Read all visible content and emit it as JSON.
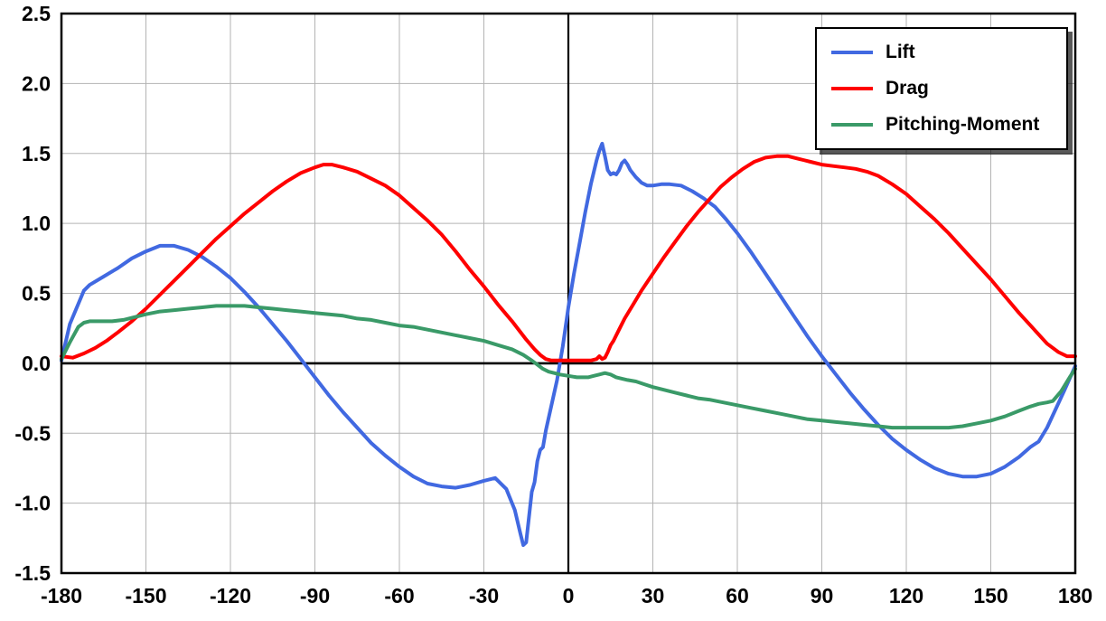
{
  "chart_data": {
    "type": "line",
    "title": "",
    "xlabel": "",
    "ylabel": "",
    "xlim": [
      -180,
      180
    ],
    "ylim": [
      -1.5,
      2.5
    ],
    "grid": true,
    "grid_color": "#b3b3b3",
    "axis_color": "#000000",
    "legend_position": "top-right",
    "x_ticks": [
      -180,
      -150,
      -120,
      -90,
      -60,
      -30,
      0,
      30,
      60,
      90,
      120,
      150,
      180
    ],
    "x_tick_labels": [
      "-180",
      "-150",
      "-120",
      "-90",
      "-60",
      "-30",
      "0",
      "30",
      "60",
      "90",
      "120",
      "150",
      "180"
    ],
    "y_ticks": [
      -1.5,
      -1.0,
      -0.5,
      0.0,
      0.5,
      1.0,
      1.5,
      2.0,
      2.5
    ],
    "y_tick_labels": [
      "-1.5",
      "-1.0",
      "-0.5",
      "0.0",
      "0.5",
      "1.0",
      "1.5",
      "2.0",
      "2.5"
    ],
    "series": [
      {
        "name": "Lift",
        "color": "#4169E1",
        "points": [
          [
            -180,
            0.02
          ],
          [
            -177,
            0.28
          ],
          [
            -172,
            0.52
          ],
          [
            -170,
            0.56
          ],
          [
            -165,
            0.62
          ],
          [
            -160,
            0.68
          ],
          [
            -155,
            0.75
          ],
          [
            -150,
            0.8
          ],
          [
            -145,
            0.84
          ],
          [
            -140,
            0.84
          ],
          [
            -135,
            0.81
          ],
          [
            -130,
            0.76
          ],
          [
            -125,
            0.69
          ],
          [
            -120,
            0.61
          ],
          [
            -115,
            0.51
          ],
          [
            -110,
            0.4
          ],
          [
            -105,
            0.28
          ],
          [
            -100,
            0.16
          ],
          [
            -95,
            0.03
          ],
          [
            -90,
            -0.1
          ],
          [
            -85,
            -0.23
          ],
          [
            -80,
            -0.35
          ],
          [
            -75,
            -0.46
          ],
          [
            -70,
            -0.57
          ],
          [
            -65,
            -0.66
          ],
          [
            -60,
            -0.74
          ],
          [
            -55,
            -0.81
          ],
          [
            -50,
            -0.86
          ],
          [
            -45,
            -0.88
          ],
          [
            -40,
            -0.89
          ],
          [
            -35,
            -0.87
          ],
          [
            -30,
            -0.84
          ],
          [
            -26,
            -0.82
          ],
          [
            -22,
            -0.9
          ],
          [
            -19,
            -1.05
          ],
          [
            -17,
            -1.22
          ],
          [
            -16,
            -1.3
          ],
          [
            -15,
            -1.28
          ],
          [
            -14,
            -1.1
          ],
          [
            -13,
            -0.92
          ],
          [
            -12,
            -0.85
          ],
          [
            -11,
            -0.7
          ],
          [
            -10,
            -0.62
          ],
          [
            -9,
            -0.6
          ],
          [
            -8,
            -0.48
          ],
          [
            -6,
            -0.3
          ],
          [
            -4,
            -0.12
          ],
          [
            -2,
            0.12
          ],
          [
            0,
            0.4
          ],
          [
            2,
            0.64
          ],
          [
            4,
            0.86
          ],
          [
            6,
            1.08
          ],
          [
            8,
            1.28
          ],
          [
            10,
            1.45
          ],
          [
            11,
            1.52
          ],
          [
            12,
            1.57
          ],
          [
            13,
            1.48
          ],
          [
            14,
            1.38
          ],
          [
            15,
            1.35
          ],
          [
            16,
            1.36
          ],
          [
            17,
            1.35
          ],
          [
            18,
            1.38
          ],
          [
            19,
            1.43
          ],
          [
            20,
            1.45
          ],
          [
            21,
            1.42
          ],
          [
            22,
            1.38
          ],
          [
            24,
            1.33
          ],
          [
            26,
            1.29
          ],
          [
            28,
            1.27
          ],
          [
            30,
            1.27
          ],
          [
            33,
            1.28
          ],
          [
            36,
            1.28
          ],
          [
            40,
            1.27
          ],
          [
            44,
            1.23
          ],
          [
            48,
            1.18
          ],
          [
            52,
            1.12
          ],
          [
            56,
            1.03
          ],
          [
            60,
            0.93
          ],
          [
            65,
            0.79
          ],
          [
            70,
            0.64
          ],
          [
            75,
            0.49
          ],
          [
            80,
            0.34
          ],
          [
            85,
            0.19
          ],
          [
            90,
            0.05
          ],
          [
            95,
            -0.08
          ],
          [
            100,
            -0.21
          ],
          [
            105,
            -0.33
          ],
          [
            110,
            -0.44
          ],
          [
            115,
            -0.54
          ],
          [
            120,
            -0.62
          ],
          [
            125,
            -0.69
          ],
          [
            130,
            -0.75
          ],
          [
            135,
            -0.79
          ],
          [
            140,
            -0.81
          ],
          [
            145,
            -0.81
          ],
          [
            150,
            -0.79
          ],
          [
            155,
            -0.74
          ],
          [
            160,
            -0.67
          ],
          [
            164,
            -0.6
          ],
          [
            167,
            -0.56
          ],
          [
            170,
            -0.46
          ],
          [
            173,
            -0.33
          ],
          [
            176,
            -0.2
          ],
          [
            180,
            -0.02
          ]
        ]
      },
      {
        "name": "Drag",
        "color": "#FF0000",
        "points": [
          [
            -180,
            0.05
          ],
          [
            -176,
            0.04
          ],
          [
            -172,
            0.07
          ],
          [
            -168,
            0.11
          ],
          [
            -164,
            0.16
          ],
          [
            -160,
            0.22
          ],
          [
            -155,
            0.3
          ],
          [
            -150,
            0.39
          ],
          [
            -145,
            0.49
          ],
          [
            -140,
            0.59
          ],
          [
            -135,
            0.69
          ],
          [
            -130,
            0.79
          ],
          [
            -125,
            0.89
          ],
          [
            -120,
            0.98
          ],
          [
            -115,
            1.07
          ],
          [
            -110,
            1.15
          ],
          [
            -105,
            1.23
          ],
          [
            -100,
            1.3
          ],
          [
            -95,
            1.36
          ],
          [
            -90,
            1.4
          ],
          [
            -87,
            1.42
          ],
          [
            -84,
            1.42
          ],
          [
            -80,
            1.4
          ],
          [
            -75,
            1.37
          ],
          [
            -70,
            1.32
          ],
          [
            -65,
            1.27
          ],
          [
            -60,
            1.2
          ],
          [
            -55,
            1.11
          ],
          [
            -50,
            1.02
          ],
          [
            -45,
            0.92
          ],
          [
            -40,
            0.8
          ],
          [
            -35,
            0.67
          ],
          [
            -30,
            0.55
          ],
          [
            -25,
            0.42
          ],
          [
            -20,
            0.3
          ],
          [
            -15,
            0.17
          ],
          [
            -12,
            0.1
          ],
          [
            -10,
            0.06
          ],
          [
            -8,
            0.03
          ],
          [
            -6,
            0.02
          ],
          [
            -3,
            0.02
          ],
          [
            0,
            0.02
          ],
          [
            3,
            0.02
          ],
          [
            6,
            0.02
          ],
          [
            8,
            0.02
          ],
          [
            10,
            0.03
          ],
          [
            11,
            0.05
          ],
          [
            12,
            0.03
          ],
          [
            13,
            0.04
          ],
          [
            14,
            0.08
          ],
          [
            15,
            0.13
          ],
          [
            16,
            0.16
          ],
          [
            18,
            0.24
          ],
          [
            20,
            0.32
          ],
          [
            23,
            0.42
          ],
          [
            26,
            0.52
          ],
          [
            30,
            0.64
          ],
          [
            34,
            0.76
          ],
          [
            38,
            0.87
          ],
          [
            42,
            0.98
          ],
          [
            46,
            1.08
          ],
          [
            50,
            1.17
          ],
          [
            54,
            1.26
          ],
          [
            58,
            1.33
          ],
          [
            62,
            1.39
          ],
          [
            66,
            1.44
          ],
          [
            70,
            1.47
          ],
          [
            74,
            1.48
          ],
          [
            78,
            1.48
          ],
          [
            82,
            1.46
          ],
          [
            86,
            1.44
          ],
          [
            90,
            1.42
          ],
          [
            94,
            1.41
          ],
          [
            98,
            1.4
          ],
          [
            102,
            1.39
          ],
          [
            106,
            1.37
          ],
          [
            110,
            1.34
          ],
          [
            115,
            1.28
          ],
          [
            120,
            1.21
          ],
          [
            125,
            1.12
          ],
          [
            130,
            1.03
          ],
          [
            135,
            0.93
          ],
          [
            140,
            0.82
          ],
          [
            145,
            0.71
          ],
          [
            150,
            0.6
          ],
          [
            155,
            0.48
          ],
          [
            160,
            0.36
          ],
          [
            165,
            0.25
          ],
          [
            170,
            0.14
          ],
          [
            174,
            0.08
          ],
          [
            177,
            0.05
          ],
          [
            180,
            0.05
          ]
        ]
      },
      {
        "name": "Pitching-Moment",
        "color": "#3A9A68",
        "points": [
          [
            -180,
            0.03
          ],
          [
            -177,
            0.15
          ],
          [
            -174,
            0.26
          ],
          [
            -172,
            0.29
          ],
          [
            -170,
            0.3
          ],
          [
            -166,
            0.3
          ],
          [
            -162,
            0.3
          ],
          [
            -158,
            0.31
          ],
          [
            -154,
            0.33
          ],
          [
            -150,
            0.35
          ],
          [
            -145,
            0.37
          ],
          [
            -140,
            0.38
          ],
          [
            -135,
            0.39
          ],
          [
            -130,
            0.4
          ],
          [
            -125,
            0.41
          ],
          [
            -120,
            0.41
          ],
          [
            -115,
            0.41
          ],
          [
            -110,
            0.4
          ],
          [
            -105,
            0.39
          ],
          [
            -100,
            0.38
          ],
          [
            -95,
            0.37
          ],
          [
            -90,
            0.36
          ],
          [
            -85,
            0.35
          ],
          [
            -80,
            0.34
          ],
          [
            -75,
            0.32
          ],
          [
            -70,
            0.31
          ],
          [
            -65,
            0.29
          ],
          [
            -60,
            0.27
          ],
          [
            -55,
            0.26
          ],
          [
            -50,
            0.24
          ],
          [
            -45,
            0.22
          ],
          [
            -40,
            0.2
          ],
          [
            -35,
            0.18
          ],
          [
            -30,
            0.16
          ],
          [
            -25,
            0.13
          ],
          [
            -20,
            0.1
          ],
          [
            -16,
            0.06
          ],
          [
            -13,
            0.02
          ],
          [
            -11,
            -0.01
          ],
          [
            -9,
            -0.04
          ],
          [
            -7,
            -0.06
          ],
          [
            -5,
            -0.07
          ],
          [
            -3,
            -0.08
          ],
          [
            0,
            -0.09
          ],
          [
            3,
            -0.1
          ],
          [
            5,
            -0.1
          ],
          [
            7,
            -0.1
          ],
          [
            9,
            -0.09
          ],
          [
            11,
            -0.08
          ],
          [
            13,
            -0.07
          ],
          [
            15,
            -0.08
          ],
          [
            17,
            -0.1
          ],
          [
            19,
            -0.11
          ],
          [
            21,
            -0.12
          ],
          [
            24,
            -0.13
          ],
          [
            27,
            -0.15
          ],
          [
            30,
            -0.17
          ],
          [
            34,
            -0.19
          ],
          [
            38,
            -0.21
          ],
          [
            42,
            -0.23
          ],
          [
            46,
            -0.25
          ],
          [
            50,
            -0.26
          ],
          [
            55,
            -0.28
          ],
          [
            60,
            -0.3
          ],
          [
            65,
            -0.32
          ],
          [
            70,
            -0.34
          ],
          [
            75,
            -0.36
          ],
          [
            80,
            -0.38
          ],
          [
            85,
            -0.4
          ],
          [
            90,
            -0.41
          ],
          [
            95,
            -0.42
          ],
          [
            100,
            -0.43
          ],
          [
            105,
            -0.44
          ],
          [
            110,
            -0.45
          ],
          [
            115,
            -0.46
          ],
          [
            120,
            -0.46
          ],
          [
            125,
            -0.46
          ],
          [
            130,
            -0.46
          ],
          [
            135,
            -0.46
          ],
          [
            140,
            -0.45
          ],
          [
            145,
            -0.43
          ],
          [
            150,
            -0.41
          ],
          [
            155,
            -0.38
          ],
          [
            160,
            -0.34
          ],
          [
            164,
            -0.31
          ],
          [
            167,
            -0.29
          ],
          [
            170,
            -0.28
          ],
          [
            172,
            -0.27
          ],
          [
            175,
            -0.2
          ],
          [
            178,
            -0.1
          ],
          [
            180,
            -0.04
          ]
        ]
      }
    ]
  },
  "legend": {
    "items": [
      "Lift",
      "Drag",
      "Pitching-Moment"
    ]
  }
}
